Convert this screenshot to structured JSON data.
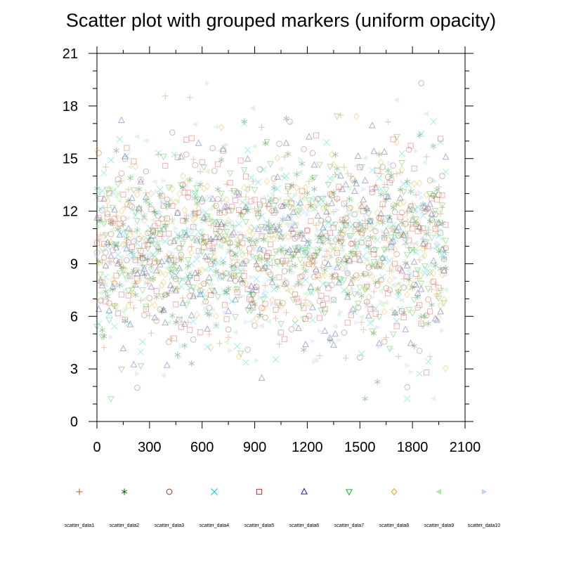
{
  "chart_data": {
    "type": "scatter",
    "title": "Scatter plot with grouped markers (uniform opacity)",
    "xlabel": "",
    "ylabel": "",
    "xlim": [
      0,
      2100
    ],
    "ylim": [
      0,
      21
    ],
    "x_ticks": [
      0,
      300,
      600,
      900,
      1200,
      1500,
      1800,
      2100
    ],
    "y_ticks": [
      0,
      3,
      6,
      9,
      12,
      15,
      18,
      21
    ],
    "x_tick_labels": [
      "0",
      "300",
      "600",
      "900",
      "1200",
      "1500",
      "1800",
      "2100"
    ],
    "y_tick_labels": [
      "0",
      "3",
      "6",
      "9",
      "12",
      "15",
      "18",
      "21"
    ],
    "grid": false,
    "legend_position": "bottom",
    "points_per_series": 200,
    "x_step": 10,
    "y_center": 10,
    "y_spread": 2.8,
    "marker_opacity": 0.35,
    "series": [
      {
        "name": "scatter_data1",
        "marker": "plus",
        "color": "#b5651d"
      },
      {
        "name": "scatter_data2",
        "marker": "asterisk",
        "color": "#006400"
      },
      {
        "name": "scatter_data3",
        "marker": "circle",
        "color": "#8b3a1a"
      },
      {
        "name": "scatter_data4",
        "marker": "cross",
        "color": "#00c8c8"
      },
      {
        "name": "scatter_data5",
        "marker": "square",
        "color": "#e02020"
      },
      {
        "name": "scatter_data6",
        "marker": "triangle-up",
        "color": "#1a1a8c"
      },
      {
        "name": "scatter_data7",
        "marker": "triangle-down",
        "color": "#19b419"
      },
      {
        "name": "scatter_data8",
        "marker": "diamond",
        "color": "#e6a000"
      },
      {
        "name": "scatter_data9",
        "marker": "triangle-left-filled",
        "color": "#a8e8a8"
      },
      {
        "name": "scatter_data10",
        "marker": "triangle-right-filled",
        "color": "#bcd6f5"
      }
    ]
  }
}
